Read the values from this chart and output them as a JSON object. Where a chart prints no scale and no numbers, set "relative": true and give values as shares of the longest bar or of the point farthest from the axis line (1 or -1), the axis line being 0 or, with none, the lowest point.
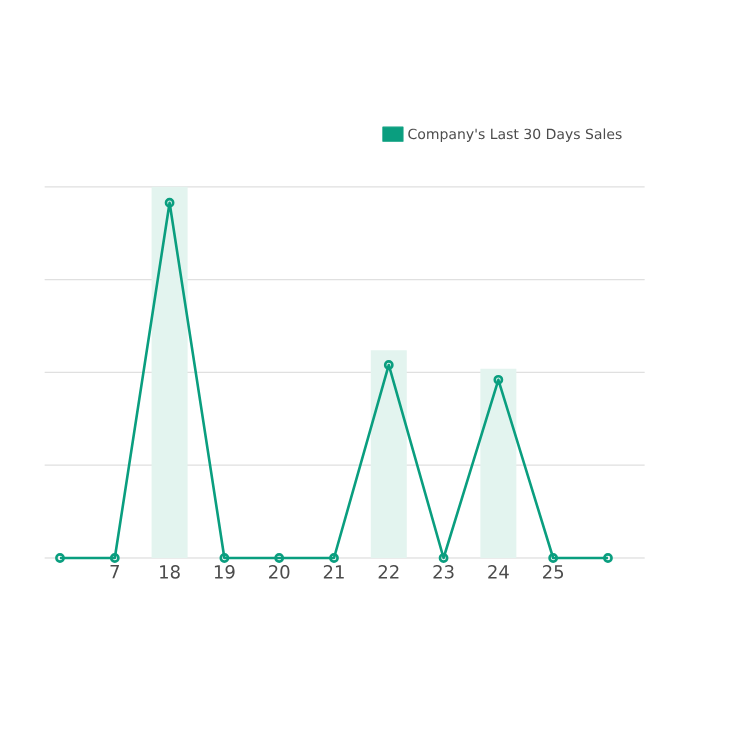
{
  "chart_data": {
    "type": "line",
    "relative": true,
    "categories": [
      null,
      "7",
      "18",
      "19",
      "20",
      "21",
      "22",
      "23",
      "24",
      "25",
      null
    ],
    "series": [
      {
        "type": "bar",
        "color": "#e3f4ef",
        "values": [
          0,
          0,
          1,
          0,
          0,
          0,
          0.56,
          0,
          0.51,
          0,
          0
        ]
      },
      {
        "name": "Company's Last 30 Days Sales",
        "color": "#0a9e7f",
        "values": [
          0,
          0,
          0.957,
          0,
          0,
          0,
          0.52,
          0,
          0.48,
          0,
          0
        ]
      }
    ],
    "marker": "circle",
    "grid": "y",
    "legend": "top right"
  }
}
